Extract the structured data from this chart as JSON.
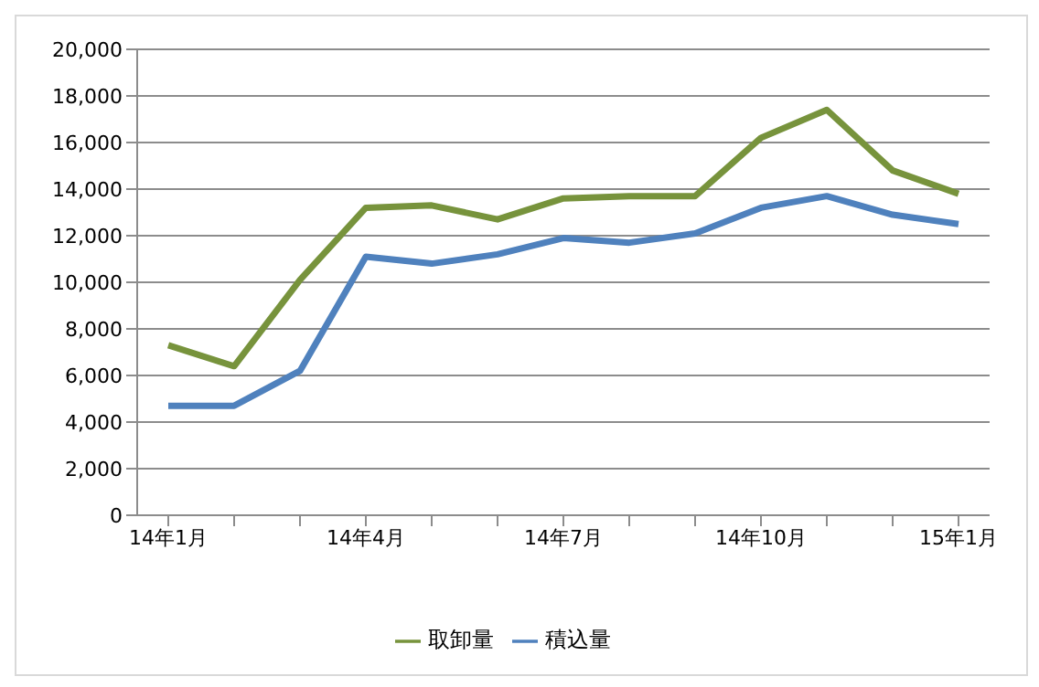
{
  "chart_data": {
    "type": "line",
    "categories": [
      "14年1月",
      null,
      null,
      "14年4月",
      null,
      null,
      "14年7月",
      null,
      null,
      "14年10月",
      null,
      null,
      "15年1月"
    ],
    "series": [
      {
        "name": "積込量",
        "color": "#4f81bd",
        "values": [
          4700,
          4700,
          6200,
          11100,
          10800,
          11200,
          11900,
          11700,
          12100,
          13200,
          13700,
          12900,
          12500
        ]
      },
      {
        "name": "取卸量",
        "color": "#77933c",
        "values": [
          7300,
          6400,
          10100,
          13200,
          13300,
          12700,
          13600,
          13700,
          13700,
          16200,
          17400,
          14800,
          13800
        ]
      }
    ],
    "ylim": [
      0,
      20000
    ],
    "yticks": [
      {
        "value": 0,
        "label": "0"
      },
      {
        "value": 2000,
        "label": "2,000"
      },
      {
        "value": 4000,
        "label": "4,000"
      },
      {
        "value": 6000,
        "label": "6,000"
      },
      {
        "value": 8000,
        "label": "8,000"
      },
      {
        "value": 10000,
        "label": "10,000"
      },
      {
        "value": 12000,
        "label": "12,000"
      },
      {
        "value": 14000,
        "label": "14,000"
      },
      {
        "value": 16000,
        "label": "16,000"
      },
      {
        "value": 18000,
        "label": "18,000"
      },
      {
        "value": 20000,
        "label": "20,000"
      }
    ],
    "grid": "y",
    "legend": "bottom",
    "marker": "none",
    "line_style": "solid"
  }
}
